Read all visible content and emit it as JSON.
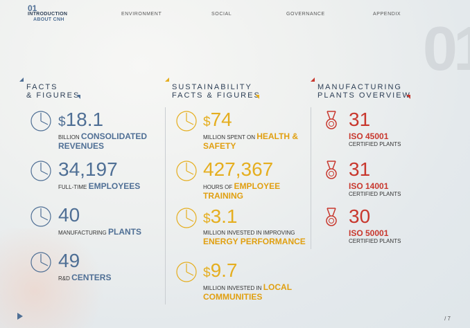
{
  "header": {
    "section_number": "01",
    "section_title": "INTRODUCTION",
    "section_subtitle": "ABOUT CNH",
    "nav": [
      "ENVIRONMENT",
      "SOCIAL",
      "GOVERNANCE",
      "APPENDIX"
    ]
  },
  "columns": [
    {
      "title": [
        "FACTS",
        "& FIGURES"
      ],
      "items": [
        {
          "prefix": "$",
          "number": "18.1",
          "text": "BILLION",
          "highlight": "CONSOLIDATED REVENUES"
        },
        {
          "number": "34,197",
          "text": "FULL-TIME",
          "highlight": "EMPLOYEES"
        },
        {
          "number": "40",
          "text": "MANUFACTURING",
          "highlight": "PLANTS"
        },
        {
          "number": "49",
          "text": "R&D",
          "highlight": "CENTERS"
        }
      ]
    },
    {
      "title": [
        "SUSTAINABILITY",
        "FACTS & FIGURES"
      ],
      "items": [
        {
          "prefix": "$",
          "number": "74",
          "text": "MILLION SPENT ON",
          "highlight": "HEALTH & SAFETY"
        },
        {
          "number": "427,367",
          "text": "HOURS OF",
          "highlight": "EMPLOYEE TRAINING"
        },
        {
          "prefix": "$",
          "number": "3.1",
          "text": "MILLION INVESTED IN IMPROVING",
          "highlight": "ENERGY PERFORMANCE"
        },
        {
          "prefix": "$",
          "number": "9.7",
          "text": "MILLION INVESTED IN",
          "highlight": "LOCAL COMMUNITIES"
        }
      ]
    },
    {
      "title": [
        "MANUFACTURING",
        "PLANTS OVERVIEW"
      ],
      "items": [
        {
          "number": "31",
          "highlight": "ISO 45001",
          "text": "CERTIFIED PLANTS"
        },
        {
          "number": "31",
          "highlight": "ISO 14001",
          "text": "CERTIFIED PLANTS"
        },
        {
          "number": "30",
          "highlight": "ISO 50001",
          "text": "CERTIFIED PLANTS"
        }
      ]
    }
  ],
  "footer": {
    "page": "/ 7"
  }
}
